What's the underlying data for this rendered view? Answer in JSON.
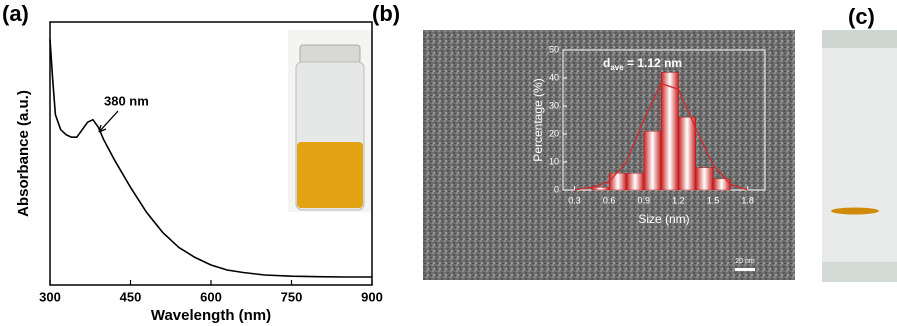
{
  "panel_labels": [
    "(a)",
    "(b)",
    "(c)"
  ],
  "scale_bar": "20 nm",
  "chart_data": [
    {
      "type": "line",
      "xlabel": "Wavelength (nm)",
      "ylabel": "Absorbance (a.u.)",
      "annotation": "380 nm",
      "x": [
        300,
        305,
        310,
        320,
        330,
        340,
        350,
        360,
        370,
        380,
        390,
        400,
        420,
        450,
        480,
        510,
        540,
        570,
        600,
        630,
        660,
        700,
        750,
        800,
        850,
        900
      ],
      "values": [
        0.98,
        0.82,
        0.68,
        0.62,
        0.6,
        0.59,
        0.59,
        0.62,
        0.65,
        0.66,
        0.63,
        0.58,
        0.5,
        0.39,
        0.29,
        0.21,
        0.15,
        0.11,
        0.08,
        0.06,
        0.05,
        0.04,
        0.035,
        0.033,
        0.032,
        0.032
      ],
      "color": "#000000",
      "xlim": [
        300,
        900
      ],
      "xticks": [
        300,
        450,
        600,
        750,
        900
      ],
      "ylim": [
        0,
        1.05
      ]
    },
    {
      "type": "histogram",
      "xlabel": "Size (nm)",
      "ylabel": "Percentage (%)",
      "annotation": {
        "base": "d",
        "subscript": "ave",
        "text": " = 1.12 nm"
      },
      "bins": [
        0.45,
        0.6,
        0.75,
        0.9,
        1.05,
        1.2,
        1.35,
        1.5,
        1.65
      ],
      "counts": [
        1,
        6,
        6,
        21,
        42,
        26,
        8,
        4
      ],
      "fit": {
        "x": [
          0.3,
          0.45,
          0.6,
          0.75,
          0.9,
          1.05,
          1.2,
          1.35,
          1.5,
          1.65,
          1.8
        ],
        "values": [
          0,
          1,
          3,
          10,
          25,
          38,
          36,
          22,
          9,
          2,
          0
        ]
      },
      "color": "#d42a2a",
      "xlim": [
        0.2,
        1.95
      ],
      "xticks": [
        0.3,
        0.6,
        0.9,
        1.2,
        1.5,
        1.8
      ],
      "ylim": [
        0,
        50
      ],
      "yticks": [
        0,
        10,
        20,
        30,
        40,
        50
      ]
    }
  ]
}
